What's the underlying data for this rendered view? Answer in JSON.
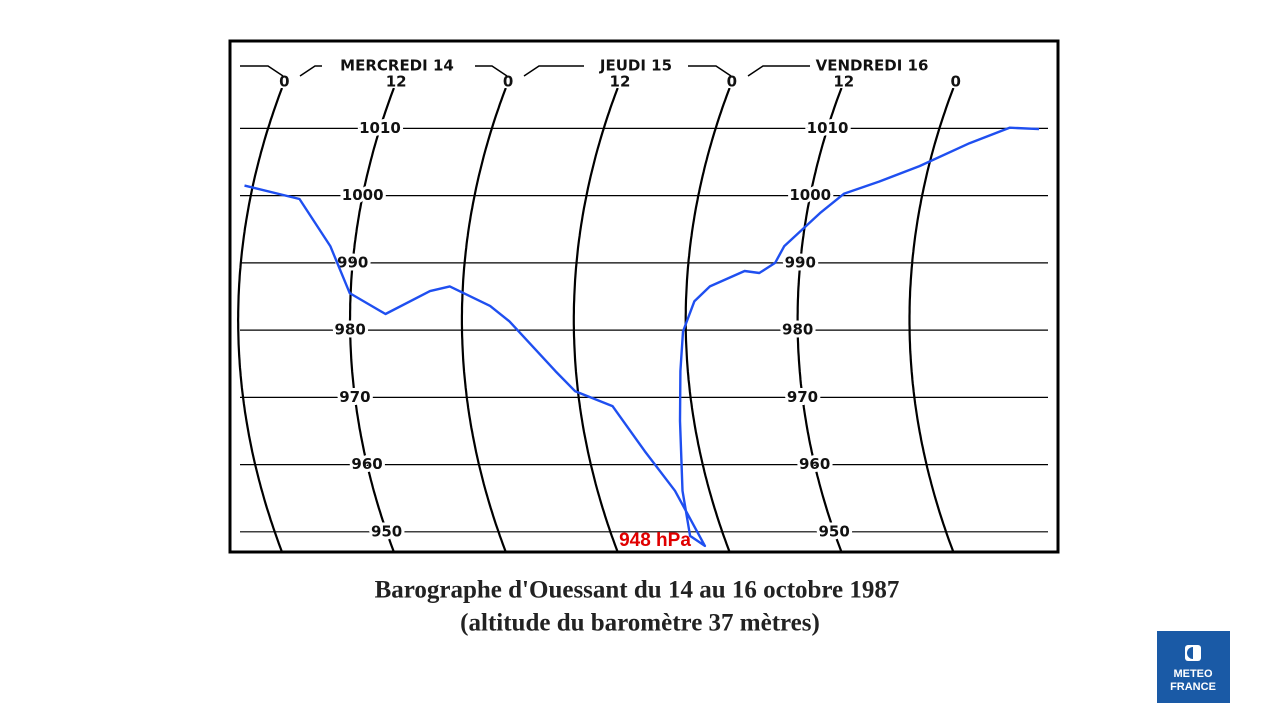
{
  "chart_data": {
    "type": "line",
    "day_labels": [
      "MERCREDI 14",
      "JEUDI 15",
      "VENDREDI 16"
    ],
    "x": [
      -0.9,
      5.3,
      9.4,
      11.9,
      15.8,
      20.5,
      22.6,
      27.0,
      29.1,
      33.8,
      35.7,
      39.5,
      42.1,
      44.3,
      45.6,
      44.4,
      45.1,
      46.5,
      47.2,
      47.7,
      48.9,
      50.5,
      54.1,
      55.7,
      57.3,
      58.1,
      61.4,
      63.6,
      67.1,
      71.0,
      75.7,
      79.5,
      82.7
    ],
    "series": [
      {
        "color": "#1f4ff0",
        "values": [
          1001.5,
          999.5,
          992.5,
          985.5,
          982.4,
          985.8,
          986.5,
          983.6,
          981.3,
          973.9,
          970.9,
          968.7,
          962.0,
          956.1,
          947.9,
          949.4,
          956.1,
          966.5,
          973.9,
          979.8,
          984.3,
          986.5,
          988.8,
          988.5,
          990.0,
          992.5,
          997.4,
          1000.3,
          1002.1,
          1004.4,
          1007.8,
          1010.1,
          1009.9
        ]
      }
    ],
    "xlim": [
      -5.7,
      83.1
    ],
    "xticks": [
      {
        "value": 0,
        "label": "0"
      },
      {
        "value": 12,
        "label": "12"
      },
      {
        "value": 24,
        "label": "0"
      },
      {
        "value": 36,
        "label": "12"
      },
      {
        "value": 48,
        "label": "0"
      },
      {
        "value": 60,
        "label": "12"
      },
      {
        "value": 72,
        "label": "0"
      }
    ],
    "ylim": [
      947,
      1023
    ],
    "yticks": [
      950,
      960,
      970,
      980,
      990,
      1000,
      1010
    ],
    "grid": true,
    "annotations": [
      "948 hPa"
    ],
    "caption": [
      "Barographe d'Ouessant du 14 au 16 octobre 1987",
      "(altitude du baromètre 37 mètres)"
    ]
  },
  "logo": [
    "METEO",
    "FRANCE"
  ]
}
